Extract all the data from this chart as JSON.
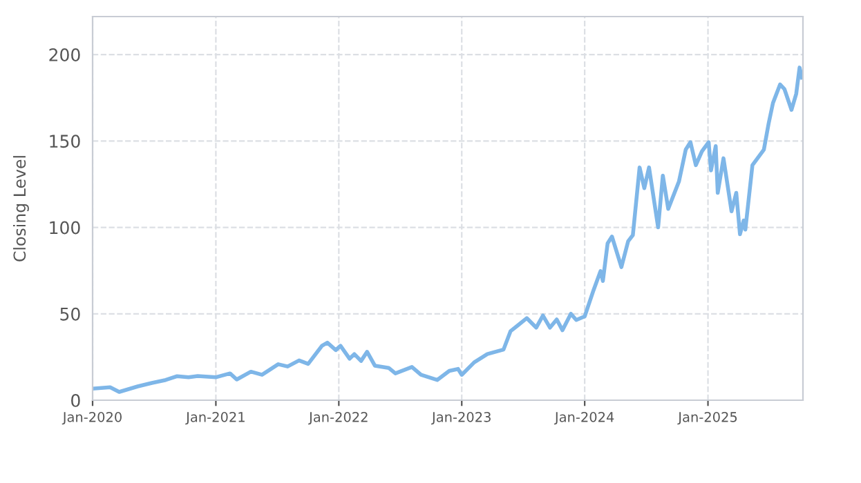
{
  "chart_data": {
    "type": "line",
    "ylabel": "Closing Level",
    "grid": true,
    "marker": "none",
    "line_style": "solid",
    "xlim": [
      "2020-01-01",
      "2025-10-10"
    ],
    "ylim": [
      0,
      222
    ],
    "xticks": [
      {
        "value": "2020-01-01",
        "label": "Jan-2020"
      },
      {
        "value": "2021-01-01",
        "label": "Jan-2021"
      },
      {
        "value": "2022-01-01",
        "label": "Jan-2022"
      },
      {
        "value": "2023-01-01",
        "label": "Jan-2023"
      },
      {
        "value": "2024-01-01",
        "label": "Jan-2024"
      },
      {
        "value": "2025-01-01",
        "label": "Jan-2025"
      }
    ],
    "yticks": [
      0,
      50,
      100,
      150,
      200
    ],
    "series": [
      {
        "color": "#7eb6e8",
        "x": [
          "2020-01-01",
          "2020-02-22",
          "2020-03-20",
          "2020-05-14",
          "2020-06-25",
          "2020-08-05",
          "2020-09-08",
          "2020-10-12",
          "2020-11-08",
          "2021-01-02",
          "2021-02-12",
          "2021-03-04",
          "2021-04-15",
          "2021-05-18",
          "2021-07-05",
          "2021-08-02",
          "2021-09-05",
          "2021-10-02",
          "2021-11-12",
          "2021-11-28",
          "2021-12-23",
          "2022-01-06",
          "2022-02-02",
          "2022-02-16",
          "2022-03-08",
          "2022-03-26",
          "2022-04-18",
          "2022-05-29",
          "2022-06-18",
          "2022-08-06",
          "2022-09-02",
          "2022-10-20",
          "2022-11-25",
          "2022-12-21",
          "2023-01-01",
          "2023-02-07",
          "2023-03-18",
          "2023-05-05",
          "2023-05-26",
          "2023-06-16",
          "2023-07-13",
          "2023-08-10",
          "2023-08-30",
          "2023-09-20",
          "2023-10-10",
          "2023-10-27",
          "2023-11-21",
          "2023-12-07",
          "2024-01-01",
          "2024-01-27",
          "2024-02-17",
          "2024-02-24",
          "2024-03-09",
          "2024-03-22",
          "2024-04-19",
          "2024-05-09",
          "2024-05-23",
          "2024-06-12",
          "2024-06-26",
          "2024-07-10",
          "2024-08-06",
          "2024-08-20",
          "2024-09-05",
          "2024-10-07",
          "2024-10-27",
          "2024-11-10",
          "2024-11-26",
          "2024-12-14",
          "2025-01-03",
          "2025-01-10",
          "2025-01-24",
          "2025-01-30",
          "2025-02-16",
          "2025-03-12",
          "2025-03-26",
          "2025-04-06",
          "2025-04-17",
          "2025-04-22",
          "2025-05-13",
          "2025-06-16",
          "2025-06-30",
          "2025-07-13",
          "2025-08-03",
          "2025-08-16",
          "2025-09-06",
          "2025-09-20",
          "2025-09-30",
          "2025-10-07"
        ],
        "values": [
          6.7,
          7.5,
          4.8,
          8,
          10,
          11.7,
          13.9,
          13.3,
          14,
          13.3,
          15.5,
          12,
          16.5,
          14.7,
          20.8,
          19.5,
          23,
          21,
          31.5,
          33.3,
          29,
          31.5,
          24,
          26.7,
          22.7,
          28,
          20,
          18.7,
          15.5,
          19.2,
          14.7,
          11.7,
          17,
          18.1,
          14.7,
          21.9,
          26.7,
          29.3,
          40,
          43.2,
          47.5,
          42,
          49,
          42,
          46.7,
          40.5,
          50,
          46.4,
          48.5,
          63.5,
          74.7,
          69,
          90.7,
          94.7,
          77,
          92,
          95.5,
          134.7,
          122.7,
          134.7,
          100,
          130,
          110.7,
          126.7,
          145,
          149.3,
          136,
          144,
          149.3,
          133,
          147,
          120,
          140,
          109.3,
          120,
          96,
          104,
          98.7,
          136,
          145,
          160,
          172,
          182.7,
          180,
          168,
          177.3,
          192.5,
          186.7
        ]
      }
    ]
  }
}
